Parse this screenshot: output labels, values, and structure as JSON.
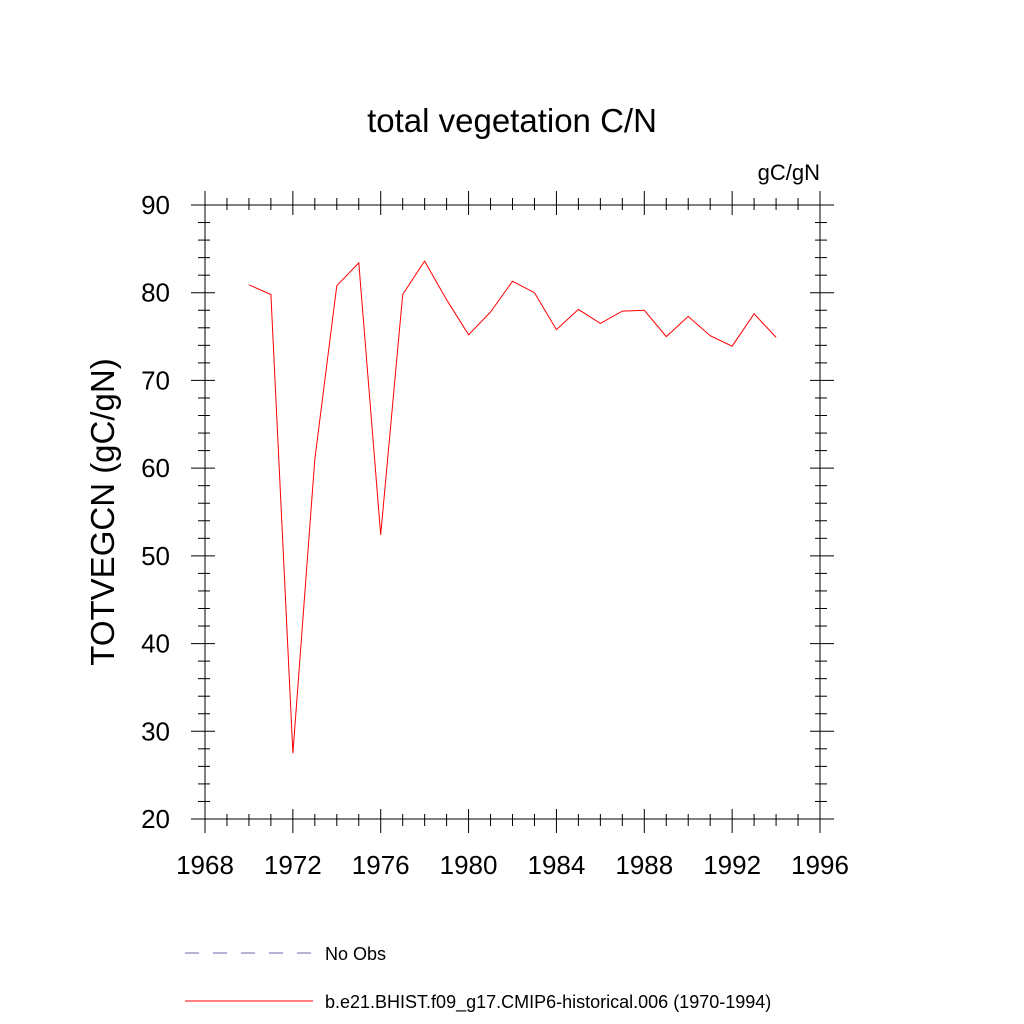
{
  "chart_data": {
    "type": "line",
    "title": "total vegetation C/N",
    "units": "gC/gN",
    "xlabel": "",
    "ylabel": "TOTVEGCN  (gC/gN)",
    "xlim": [
      1968,
      1996
    ],
    "ylim": [
      20,
      90
    ],
    "xticks": [
      1968,
      1972,
      1976,
      1980,
      1984,
      1988,
      1992,
      1996
    ],
    "yticks": [
      20,
      30,
      40,
      50,
      60,
      70,
      80,
      90
    ],
    "grid": false,
    "legend_position": "bottom",
    "series": [
      {
        "name": "b.e21.BHIST.f09_g17.CMIP6-historical.006 (1970-1994)",
        "color": "#ff0000",
        "style": "solid",
        "x": [
          1970,
          1971,
          1972,
          1973,
          1974,
          1975,
          1976,
          1977,
          1978,
          1979,
          1980,
          1981,
          1982,
          1983,
          1984,
          1985,
          1986,
          1987,
          1988,
          1989,
          1990,
          1991,
          1992,
          1993,
          1994
        ],
        "y": [
          80.9,
          79.8,
          27.5,
          61.0,
          80.8,
          83.4,
          52.4,
          79.8,
          83.6,
          79.2,
          75.2,
          77.8,
          81.3,
          80.0,
          75.8,
          78.1,
          76.5,
          77.9,
          78.0,
          75.0,
          77.3,
          75.1,
          73.9,
          77.6,
          74.9
        ]
      }
    ],
    "legend": [
      {
        "label": "No Obs",
        "color": "#6a6ab0",
        "style": "dashed"
      },
      {
        "label": "b.e21.BHIST.f09_g17.CMIP6-historical.006 (1970-1994)",
        "color": "#ff0000",
        "style": "solid"
      }
    ]
  }
}
